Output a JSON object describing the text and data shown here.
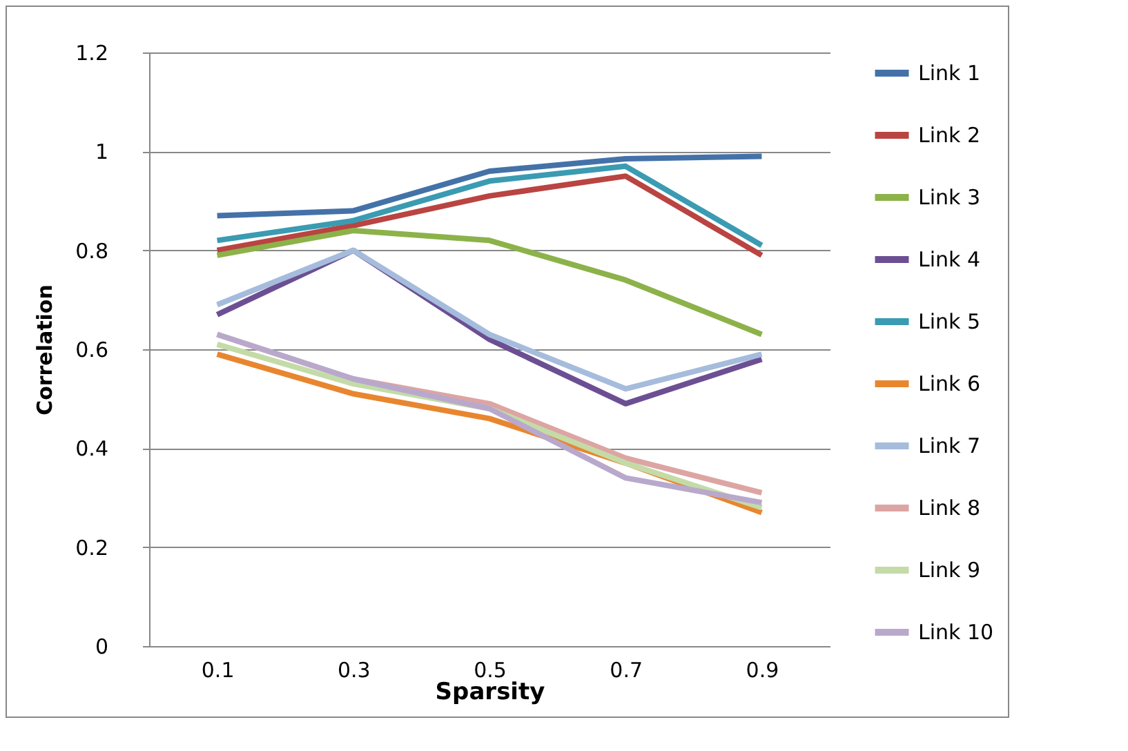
{
  "chart_data": {
    "type": "line",
    "xlabel": "Sparsity",
    "ylabel": "Correlation",
    "categories": [
      "0.1",
      "0.3",
      "0.5",
      "0.7",
      "0.9"
    ],
    "ylim": [
      0,
      1.2
    ],
    "yticks": [
      0,
      0.2,
      0.4,
      0.6,
      0.8,
      1,
      1.2
    ],
    "grid": "y",
    "legend": "right",
    "marker": "none",
    "line_style": "solid",
    "series": [
      {
        "name": "Link 1",
        "color": "#4472a8",
        "values": [
          0.87,
          0.88,
          0.96,
          0.985,
          0.99
        ]
      },
      {
        "name": "Link 2",
        "color": "#b94441",
        "values": [
          0.8,
          0.85,
          0.91,
          0.95,
          0.79
        ]
      },
      {
        "name": "Link 3",
        "color": "#8cb24a",
        "values": [
          0.79,
          0.84,
          0.82,
          0.74,
          0.63
        ]
      },
      {
        "name": "Link 4",
        "color": "#6c4f93",
        "values": [
          0.67,
          0.8,
          0.62,
          0.49,
          0.58
        ]
      },
      {
        "name": "Link 5",
        "color": "#3a9bb2",
        "values": [
          0.82,
          0.86,
          0.94,
          0.97,
          0.81
        ]
      },
      {
        "name": "Link 6",
        "color": "#e8862f",
        "values": [
          0.59,
          0.51,
          0.46,
          0.37,
          0.27
        ]
      },
      {
        "name": "Link 7",
        "color": "#a6bcdc",
        "values": [
          0.69,
          0.8,
          0.63,
          0.52,
          0.59
        ]
      },
      {
        "name": "Link 8",
        "color": "#dca5a3",
        "values": [
          0.63,
          0.54,
          0.49,
          0.38,
          0.31
        ]
      },
      {
        "name": "Link 9",
        "color": "#c4dba8",
        "values": [
          0.61,
          0.53,
          0.48,
          0.37,
          0.28
        ]
      },
      {
        "name": "Link 10",
        "color": "#b8a9cc",
        "values": [
          0.63,
          0.54,
          0.48,
          0.34,
          0.29
        ]
      }
    ]
  }
}
